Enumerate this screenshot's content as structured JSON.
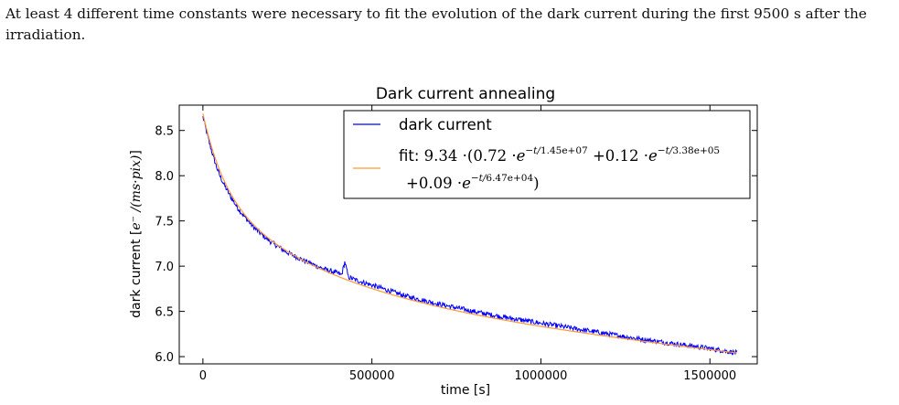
{
  "paragraph": {
    "text": "At least 4 different time constants were necessary to fit the evolution of the dark current during the first 9500 s after the irradiation."
  },
  "chart_data": {
    "type": "line",
    "title": "Dark current annealing",
    "xlabel": "time [s]",
    "ylabel_prefix": "dark current [",
    "ylabel_math": "e⁻ /(ms·pix)",
    "ylabel_suffix": "]",
    "xlim": [
      -70000,
      1640000
    ],
    "ylim": [
      5.92,
      8.78
    ],
    "xticks": [
      0,
      500000,
      1000000,
      1500000
    ],
    "xtick_labels": [
      "0",
      "500000",
      "1000000",
      "1500000"
    ],
    "yticks": [
      6.0,
      6.5,
      7.0,
      7.5,
      8.0,
      8.5
    ],
    "ytick_labels": [
      "6.0",
      "6.5",
      "7.0",
      "7.5",
      "8.0",
      "8.5"
    ],
    "grid": false,
    "legend_position": "top-right",
    "series": [
      {
        "name": "dark current",
        "color": "#0000ff",
        "x": [
          0,
          10000,
          20000,
          30000,
          40000,
          50000,
          60000,
          80000,
          100000,
          120000,
          150000,
          180000,
          200000,
          250000,
          300000,
          350000,
          400000,
          410000,
          420000,
          430000,
          450000,
          500000,
          600000,
          700000,
          800000,
          900000,
          1000000,
          1100000,
          1200000,
          1300000,
          1400000,
          1500000,
          1580000
        ],
        "y": [
          8.65,
          8.5,
          8.35,
          8.22,
          8.1,
          8.0,
          7.92,
          7.78,
          7.66,
          7.56,
          7.43,
          7.33,
          7.27,
          7.15,
          7.06,
          6.98,
          6.92,
          6.9,
          7.05,
          6.88,
          6.85,
          6.79,
          6.67,
          6.58,
          6.5,
          6.43,
          6.37,
          6.31,
          6.25,
          6.19,
          6.14,
          6.09,
          6.04
        ]
      },
      {
        "name_prefix": "fit: ",
        "color": "#ff9933",
        "amplitude": 9.34,
        "terms": [
          {
            "coef": 0.72,
            "tau": 14500000,
            "coef_label": "0.72",
            "tau_label": "1.45e+07"
          },
          {
            "coef": 0.12,
            "tau": 338000,
            "coef_label": "0.12",
            "tau_label": "3.38e+05"
          },
          {
            "coef": 0.09,
            "tau": 64700,
            "coef_label": "0.09",
            "tau_label": "6.47e+04"
          }
        ],
        "x_range": [
          0,
          1580000
        ]
      }
    ]
  }
}
